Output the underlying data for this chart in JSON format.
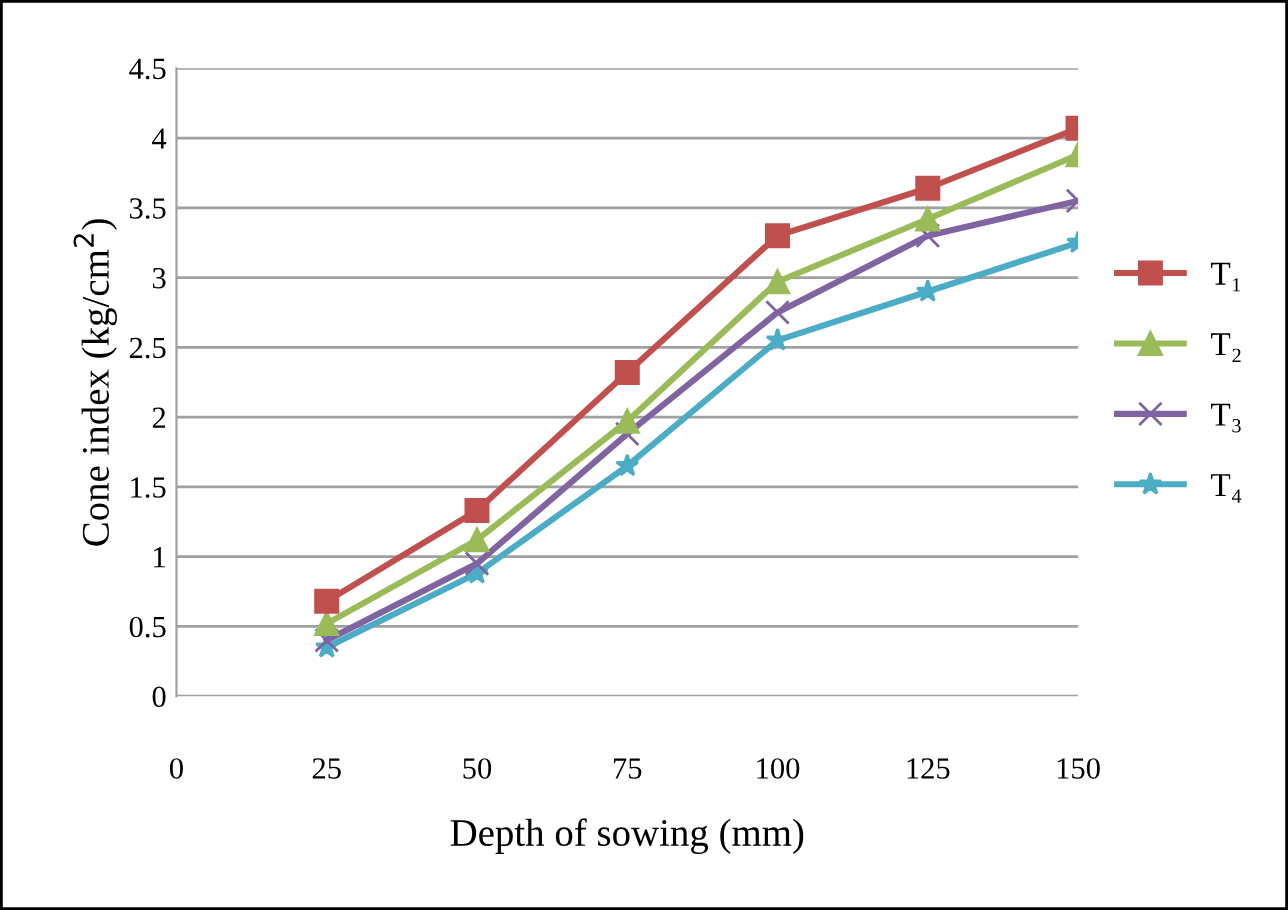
{
  "chart_data": {
    "type": "line",
    "xlabel": "Depth of sowing (mm)",
    "ylabel": "Cone index (kg/cm$^{2}$)",
    "x": [
      25,
      50,
      75,
      100,
      125,
      150
    ],
    "xlim": [
      0,
      150
    ],
    "xticks": [
      0,
      25,
      50,
      75,
      100,
      125,
      150
    ],
    "ylim": [
      0,
      4.5
    ],
    "yticks": [
      0,
      0.5,
      1,
      1.5,
      2,
      2.5,
      3,
      3.5,
      4,
      4.5
    ],
    "grid": "y",
    "legend": "right",
    "series": [
      {
        "name": "T₁",
        "color": "#c0504d",
        "marker": "square",
        "values": [
          0.68,
          1.33,
          2.32,
          3.3,
          3.64,
          4.07
        ]
      },
      {
        "name": "T₂",
        "color": "#9bbb59",
        "marker": "triangle",
        "values": [
          0.52,
          1.12,
          1.97,
          2.97,
          3.42,
          3.88
        ]
      },
      {
        "name": "T₃",
        "color": "#8064a2",
        "marker": "cross",
        "values": [
          0.4,
          0.95,
          1.88,
          2.75,
          3.3,
          3.55
        ]
      },
      {
        "name": "T₄",
        "color": "#4bacc6",
        "marker": "star",
        "values": [
          0.35,
          0.88,
          1.65,
          2.55,
          2.9,
          3.25
        ]
      }
    ]
  }
}
